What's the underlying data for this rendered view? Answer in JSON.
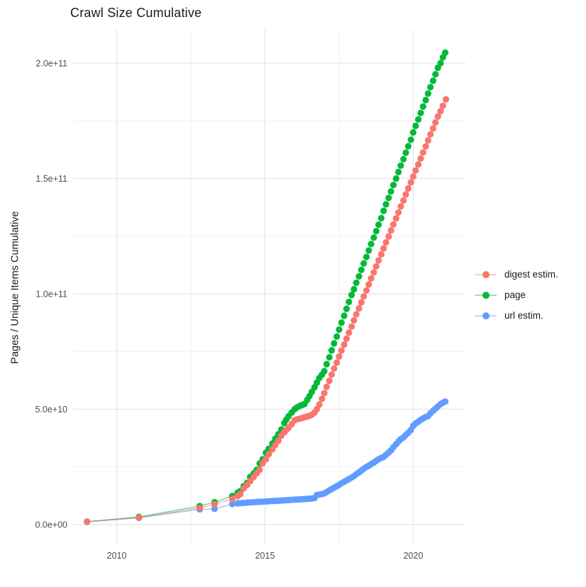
{
  "chart_data": {
    "type": "line",
    "title": "Crawl Size Cumulative",
    "xlabel": "",
    "ylabel": "Pages / Unique Items Cumulative",
    "legend_position": "right",
    "grid": true,
    "xlim": [
      2008.5,
      2021.8
    ],
    "ylim_e9": [
      -9,
      214
    ],
    "y_unit": "values stored in billions (1e9)",
    "x_ticks": [
      2010,
      2015,
      2020
    ],
    "x_tick_labels": [
      "2010",
      "2015",
      "2020"
    ],
    "x_minor_ticks": [
      2012.5,
      2017.5
    ],
    "y_tick_values_e9": [
      0,
      50,
      100,
      150,
      200
    ],
    "y_tick_labels": [
      "0.0e+00",
      "5.0e+10",
      "1.0e+11",
      "1.5e+11",
      "2.0e+11"
    ],
    "y_minor_values_e9": [
      25,
      75,
      125,
      175
    ],
    "draw_order": [
      "url estim.",
      "page",
      "digest estim."
    ],
    "series": [
      {
        "name": "digest estim.",
        "color": "#F8766D",
        "points": [
          [
            2009.0,
            1.2
          ],
          [
            2010.75,
            3.0
          ],
          [
            2012.8,
            7.2
          ],
          [
            2013.3,
            8.8
          ],
          [
            2013.9,
            11.1
          ],
          [
            2014.08,
            12.3
          ],
          [
            2014.17,
            13.2
          ],
          [
            2014.28,
            15.7
          ],
          [
            2014.4,
            17.2
          ],
          [
            2014.5,
            18.8
          ],
          [
            2014.62,
            20.6
          ],
          [
            2014.72,
            22.2
          ],
          [
            2014.82,
            23.7
          ],
          [
            2014.92,
            26.5
          ],
          [
            2015.03,
            28.3
          ],
          [
            2015.13,
            30.5
          ],
          [
            2015.25,
            32.6
          ],
          [
            2015.35,
            34.5
          ],
          [
            2015.45,
            36.3
          ],
          [
            2015.55,
            38.5
          ],
          [
            2015.65,
            40.0
          ],
          [
            2015.72,
            41.0
          ],
          [
            2015.8,
            42.0
          ],
          [
            2015.9,
            43.5
          ],
          [
            2016.0,
            45.2
          ],
          [
            2016.08,
            45.6
          ],
          [
            2016.17,
            45.9
          ],
          [
            2016.25,
            46.2
          ],
          [
            2016.33,
            46.5
          ],
          [
            2016.42,
            46.8
          ],
          [
            2016.5,
            47.1
          ],
          [
            2016.58,
            47.6
          ],
          [
            2016.67,
            48.5
          ],
          [
            2016.75,
            50.0
          ],
          [
            2016.83,
            52.0
          ],
          [
            2016.92,
            54.5
          ],
          [
            2017.0,
            57.0
          ],
          [
            2017.08,
            59.7
          ],
          [
            2017.17,
            62.3
          ],
          [
            2017.25,
            65.0
          ],
          [
            2017.33,
            67.6
          ],
          [
            2017.42,
            70.2
          ],
          [
            2017.5,
            72.8
          ],
          [
            2017.58,
            75.4
          ],
          [
            2017.67,
            78.0
          ],
          [
            2017.75,
            80.6
          ],
          [
            2017.83,
            83.2
          ],
          [
            2017.92,
            85.8
          ],
          [
            2018.0,
            88.5
          ],
          [
            2018.08,
            91.1
          ],
          [
            2018.17,
            93.7
          ],
          [
            2018.25,
            96.3
          ],
          [
            2018.33,
            98.9
          ],
          [
            2018.42,
            101.5
          ],
          [
            2018.5,
            104.1
          ],
          [
            2018.58,
            106.7
          ],
          [
            2018.67,
            109.3
          ],
          [
            2018.75,
            111.9
          ],
          [
            2018.83,
            114.5
          ],
          [
            2018.92,
            117.1
          ],
          [
            2019.0,
            119.7
          ],
          [
            2019.08,
            122.3
          ],
          [
            2019.17,
            124.9
          ],
          [
            2019.25,
            127.5
          ],
          [
            2019.33,
            130.1
          ],
          [
            2019.42,
            132.7
          ],
          [
            2019.5,
            135.3
          ],
          [
            2019.58,
            137.9
          ],
          [
            2019.67,
            140.5
          ],
          [
            2019.75,
            143.1
          ],
          [
            2019.83,
            145.7
          ],
          [
            2019.92,
            148.3
          ],
          [
            2020.0,
            150.9
          ],
          [
            2020.08,
            153.5
          ],
          [
            2020.17,
            156.1
          ],
          [
            2020.25,
            158.7
          ],
          [
            2020.33,
            161.3
          ],
          [
            2020.42,
            163.9
          ],
          [
            2020.5,
            166.5
          ],
          [
            2020.58,
            169.1
          ],
          [
            2020.67,
            171.7
          ],
          [
            2020.75,
            174.3
          ],
          [
            2020.83,
            176.9
          ],
          [
            2020.92,
            179.2
          ],
          [
            2021.0,
            181.5
          ],
          [
            2021.1,
            184.3
          ]
        ]
      },
      {
        "name": "page",
        "color": "#00BA38",
        "points": [
          [
            2009.0,
            1.3
          ],
          [
            2010.75,
            3.3
          ],
          [
            2012.8,
            8.0
          ],
          [
            2013.3,
            9.7
          ],
          [
            2013.9,
            12.4
          ],
          [
            2014.08,
            13.8
          ],
          [
            2014.17,
            14.5
          ],
          [
            2014.28,
            16.6
          ],
          [
            2014.4,
            18.1
          ],
          [
            2014.5,
            20.6
          ],
          [
            2014.62,
            22.2
          ],
          [
            2014.72,
            23.7
          ],
          [
            2014.82,
            26.5
          ],
          [
            2014.92,
            28.3
          ],
          [
            2015.03,
            31.1
          ],
          [
            2015.13,
            32.9
          ],
          [
            2015.25,
            35.1
          ],
          [
            2015.35,
            37.2
          ],
          [
            2015.45,
            39.1
          ],
          [
            2015.55,
            41.2
          ],
          [
            2015.65,
            44.0
          ],
          [
            2015.72,
            45.5
          ],
          [
            2015.8,
            47.0
          ],
          [
            2015.9,
            48.5
          ],
          [
            2016.0,
            50.0
          ],
          [
            2016.08,
            50.8
          ],
          [
            2016.17,
            51.4
          ],
          [
            2016.25,
            51.8
          ],
          [
            2016.33,
            52.2
          ],
          [
            2016.42,
            54.0
          ],
          [
            2016.5,
            55.7
          ],
          [
            2016.58,
            57.5
          ],
          [
            2016.67,
            59.5
          ],
          [
            2016.75,
            61.5
          ],
          [
            2016.83,
            63.5
          ],
          [
            2016.92,
            65.0
          ],
          [
            2017.0,
            66.5
          ],
          [
            2017.08,
            69.5
          ],
          [
            2017.17,
            72.5
          ],
          [
            2017.25,
            75.5
          ],
          [
            2017.33,
            78.5
          ],
          [
            2017.42,
            81.5
          ],
          [
            2017.5,
            84.5
          ],
          [
            2017.58,
            87.5
          ],
          [
            2017.67,
            90.5
          ],
          [
            2017.75,
            93.5
          ],
          [
            2017.83,
            96.5
          ],
          [
            2017.92,
            99.5
          ],
          [
            2018.0,
            102.0
          ],
          [
            2018.08,
            104.8
          ],
          [
            2018.17,
            107.6
          ],
          [
            2018.25,
            110.4
          ],
          [
            2018.33,
            113.2
          ],
          [
            2018.42,
            116.0
          ],
          [
            2018.5,
            118.8
          ],
          [
            2018.58,
            121.6
          ],
          [
            2018.67,
            124.4
          ],
          [
            2018.75,
            127.2
          ],
          [
            2018.83,
            130.0
          ],
          [
            2018.92,
            132.8
          ],
          [
            2019.0,
            136.0
          ],
          [
            2019.08,
            138.8
          ],
          [
            2019.17,
            141.6
          ],
          [
            2019.25,
            144.4
          ],
          [
            2019.33,
            147.2
          ],
          [
            2019.42,
            150.0
          ],
          [
            2019.5,
            152.8
          ],
          [
            2019.58,
            155.6
          ],
          [
            2019.67,
            158.4
          ],
          [
            2019.75,
            161.2
          ],
          [
            2019.83,
            164.0
          ],
          [
            2019.92,
            166.8
          ],
          [
            2020.0,
            170.0
          ],
          [
            2020.08,
            172.8
          ],
          [
            2020.17,
            175.6
          ],
          [
            2020.25,
            178.4
          ],
          [
            2020.33,
            181.2
          ],
          [
            2020.42,
            184.0
          ],
          [
            2020.5,
            186.8
          ],
          [
            2020.58,
            189.6
          ],
          [
            2020.67,
            192.4
          ],
          [
            2020.75,
            195.2
          ],
          [
            2020.83,
            198.0
          ],
          [
            2020.92,
            200.0
          ],
          [
            2021.0,
            202.5
          ],
          [
            2021.08,
            204.6
          ]
        ]
      },
      {
        "name": "url estim.",
        "color": "#619CFF",
        "points": [
          [
            2009.0,
            1.15
          ],
          [
            2010.75,
            2.9
          ],
          [
            2012.8,
            6.6
          ],
          [
            2013.3,
            6.8
          ],
          [
            2013.9,
            8.9
          ],
          [
            2014.08,
            9.2
          ],
          [
            2014.17,
            9.3
          ],
          [
            2014.28,
            9.4
          ],
          [
            2014.4,
            9.5
          ],
          [
            2014.5,
            9.6
          ],
          [
            2014.62,
            9.7
          ],
          [
            2014.72,
            9.8
          ],
          [
            2014.82,
            9.85
          ],
          [
            2014.92,
            9.9
          ],
          [
            2015.03,
            10.0
          ],
          [
            2015.13,
            10.1
          ],
          [
            2015.25,
            10.2
          ],
          [
            2015.35,
            10.25
          ],
          [
            2015.45,
            10.3
          ],
          [
            2015.55,
            10.4
          ],
          [
            2015.65,
            10.5
          ],
          [
            2015.72,
            10.55
          ],
          [
            2015.8,
            10.6
          ],
          [
            2015.9,
            10.7
          ],
          [
            2016.0,
            10.8
          ],
          [
            2016.08,
            10.85
          ],
          [
            2016.17,
            10.9
          ],
          [
            2016.25,
            11.0
          ],
          [
            2016.33,
            11.05
          ],
          [
            2016.42,
            11.1
          ],
          [
            2016.5,
            11.2
          ],
          [
            2016.58,
            11.3
          ],
          [
            2016.67,
            11.5
          ],
          [
            2016.75,
            12.8
          ],
          [
            2016.83,
            13.0
          ],
          [
            2016.92,
            13.2
          ],
          [
            2017.0,
            13.5
          ],
          [
            2017.08,
            14.1
          ],
          [
            2017.17,
            14.8
          ],
          [
            2017.25,
            15.4
          ],
          [
            2017.33,
            16.0
          ],
          [
            2017.42,
            16.6
          ],
          [
            2017.5,
            17.2
          ],
          [
            2017.58,
            17.9
          ],
          [
            2017.67,
            18.5
          ],
          [
            2017.75,
            19.1
          ],
          [
            2017.83,
            19.7
          ],
          [
            2017.92,
            20.4
          ],
          [
            2018.0,
            21.0
          ],
          [
            2018.08,
            21.8
          ],
          [
            2018.17,
            22.6
          ],
          [
            2018.25,
            23.4
          ],
          [
            2018.33,
            24.2
          ],
          [
            2018.42,
            25.0
          ],
          [
            2018.5,
            25.5
          ],
          [
            2018.58,
            26.2
          ],
          [
            2018.67,
            26.9
          ],
          [
            2018.75,
            27.6
          ],
          [
            2018.83,
            28.3
          ],
          [
            2018.92,
            28.9
          ],
          [
            2019.0,
            29.3
          ],
          [
            2019.08,
            30.2
          ],
          [
            2019.17,
            31.2
          ],
          [
            2019.25,
            32.2
          ],
          [
            2019.33,
            33.5
          ],
          [
            2019.42,
            34.8
          ],
          [
            2019.5,
            36.0
          ],
          [
            2019.58,
            37.0
          ],
          [
            2019.67,
            37.8
          ],
          [
            2019.75,
            38.8
          ],
          [
            2019.83,
            39.8
          ],
          [
            2019.92,
            41.0
          ],
          [
            2020.0,
            42.8
          ],
          [
            2020.08,
            43.8
          ],
          [
            2020.17,
            44.6
          ],
          [
            2020.25,
            45.4
          ],
          [
            2020.33,
            46.0
          ],
          [
            2020.42,
            46.6
          ],
          [
            2020.5,
            47.0
          ],
          [
            2020.58,
            48.2
          ],
          [
            2020.67,
            49.3
          ],
          [
            2020.75,
            50.2
          ],
          [
            2020.83,
            51.2
          ],
          [
            2020.92,
            52.2
          ],
          [
            2021.0,
            52.8
          ],
          [
            2021.08,
            53.3
          ]
        ]
      }
    ]
  },
  "legend": {
    "items": [
      {
        "label": "digest estim.",
        "color": "#F8766D"
      },
      {
        "label": "page",
        "color": "#00BA38"
      },
      {
        "label": "url estim.",
        "color": "#619CFF"
      }
    ]
  },
  "style": {
    "grid_major_color": "#E4E4E4",
    "grid_minor_color": "#F2F2F2",
    "tick_label_color": "#4D4D4D",
    "text_color": "#1a1a1a",
    "background": "#FFFFFF"
  }
}
